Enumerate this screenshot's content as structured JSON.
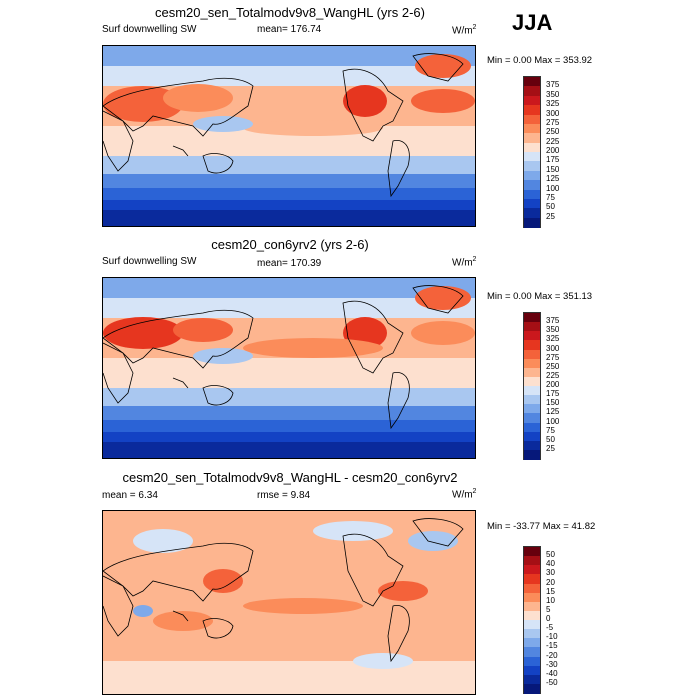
{
  "season": "JJA",
  "panels": [
    {
      "title": "cesm20_sen_Totalmodv9v8_WangHL (yrs 2-6)",
      "left_label": "Surf downwelling SW",
      "mid_label": "mean=  176.74",
      "units": "W/m",
      "units_sup": "2",
      "minmax": "Min =   0.00 Max = 353.92",
      "levels": [
        "375",
        "350",
        "325",
        "300",
        "275",
        "250",
        "225",
        "200",
        "175",
        "150",
        "125",
        "100",
        "75",
        "50",
        "25"
      ],
      "colors": [
        "#67000d",
        "#a50f15",
        "#cb181d",
        "#e6361f",
        "#f4623a",
        "#fb8c5a",
        "#fdb58f",
        "#fde0cf",
        "#d6e4f7",
        "#a9c7f0",
        "#7ea9ea",
        "#5286e0",
        "#2b63d6",
        "#1342c4",
        "#0a2a9c",
        "#06187a"
      ]
    },
    {
      "title": "cesm20_con6yrv2 (yrs 2-6)",
      "left_label": "Surf downwelling SW",
      "mid_label": "mean=  170.39",
      "units": "W/m",
      "units_sup": "2",
      "minmax": "Min =   0.00 Max = 351.13",
      "levels": [
        "375",
        "350",
        "325",
        "300",
        "275",
        "250",
        "225",
        "200",
        "175",
        "150",
        "125",
        "100",
        "75",
        "50",
        "25"
      ],
      "colors": [
        "#67000d",
        "#a50f15",
        "#cb181d",
        "#e6361f",
        "#f4623a",
        "#fb8c5a",
        "#fdb58f",
        "#fde0cf",
        "#d6e4f7",
        "#a9c7f0",
        "#7ea9ea",
        "#5286e0",
        "#2b63d6",
        "#1342c4",
        "#0a2a9c",
        "#06187a"
      ]
    },
    {
      "title": "cesm20_sen_Totalmodv9v8_WangHL - cesm20_con6yrv2",
      "left_label": "mean =   6.34",
      "mid_label": "rmse =   9.84",
      "units": "W/m",
      "units_sup": "2",
      "minmax": "Min = -33.77 Max = 41.82",
      "levels": [
        "50",
        "40",
        "30",
        "20",
        "15",
        "10",
        "5",
        "0",
        "-5",
        "-10",
        "-15",
        "-20",
        "-30",
        "-40",
        "-50"
      ],
      "colors": [
        "#67000d",
        "#a50f15",
        "#cb181d",
        "#e6361f",
        "#f4623a",
        "#fb8c5a",
        "#fdb58f",
        "#fde0cf",
        "#d6e4f7",
        "#a9c7f0",
        "#7ea9ea",
        "#5286e0",
        "#2b63d6",
        "#1342c4",
        "#0a2a9c",
        "#06187a"
      ]
    }
  ]
}
